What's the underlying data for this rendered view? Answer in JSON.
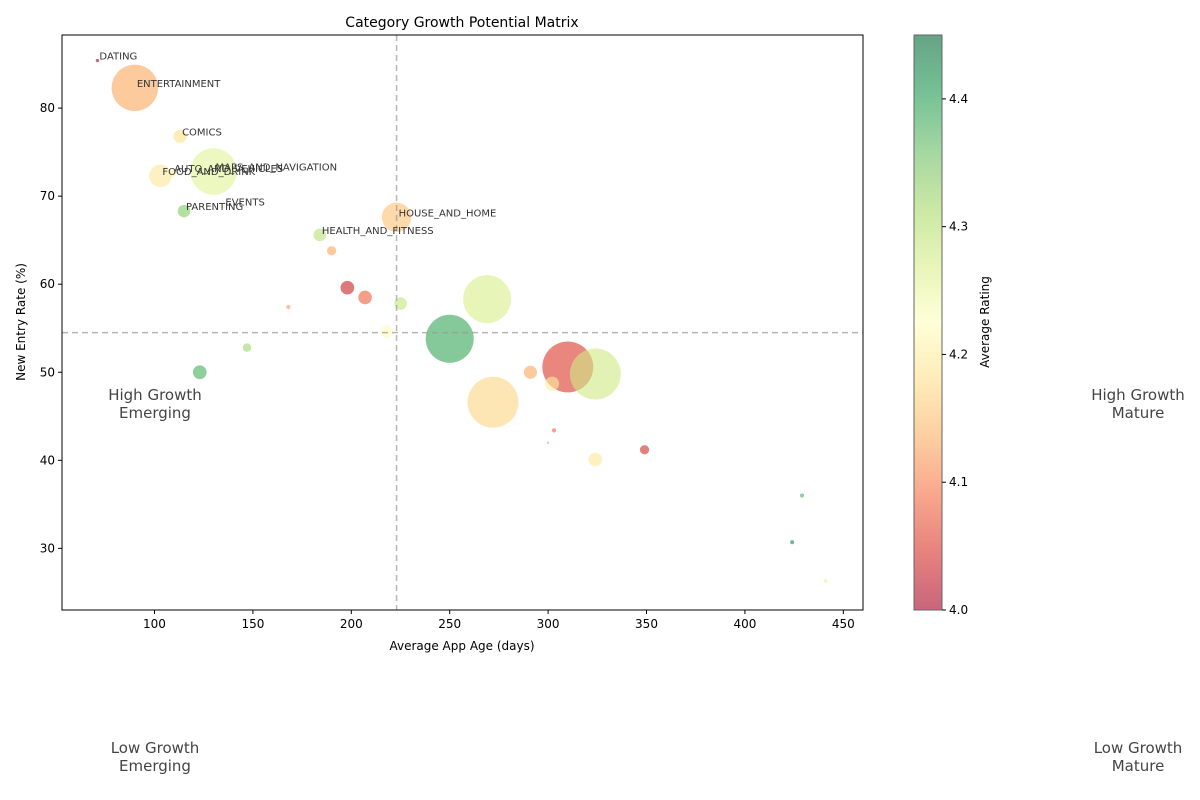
{
  "chart_data": {
    "type": "scatter",
    "title": "Category Growth Potential Matrix",
    "xlabel": "Average App Age (days)",
    "ylabel": "New Entry Rate (%)",
    "xlim": [
      53,
      460
    ],
    "ylim": [
      23,
      88.3
    ],
    "xticks": [
      100,
      150,
      200,
      250,
      300,
      350,
      400,
      450
    ],
    "yticks": [
      30,
      40,
      50,
      60,
      70,
      80
    ],
    "grid": false,
    "median_x": 223,
    "median_y": 54.5,
    "colorbar": {
      "label": "Average Rating",
      "min": 4.0,
      "max": 4.45,
      "ticks": [
        "4.0",
        "4.1",
        "4.2",
        "4.3",
        "4.4"
      ],
      "colormap": "RdYlGn"
    },
    "quadrant_labels": [
      {
        "line1": "High Growth",
        "line2": "Emerging"
      },
      {
        "line1": "High Growth",
        "line2": "Mature"
      },
      {
        "line1": "Low Growth",
        "line2": "Emerging"
      },
      {
        "line1": "Low Growth",
        "line2": "Mature"
      }
    ],
    "points": [
      {
        "label": "DATING",
        "x": 71,
        "y": 85.4,
        "size": 8,
        "rating": 4.0
      },
      {
        "label": "ENTERTAINMENT",
        "x": 90,
        "y": 82.3,
        "size": 1500,
        "rating": 4.13
      },
      {
        "label": "COMICS",
        "x": 113,
        "y": 76.8,
        "size": 120,
        "rating": 4.18
      },
      {
        "label": "AUTO_AND_VEHICLES",
        "x": 109,
        "y": 72.6,
        "size": 40,
        "rating": 4.2
      },
      {
        "label": "MAPS_AND_NAVIGATION",
        "x": 130,
        "y": 72.8,
        "size": 1500,
        "rating": 4.26
      },
      {
        "label": "FOOD_AND_DRINK",
        "x": 103,
        "y": 72.3,
        "size": 350,
        "rating": 4.19
      },
      {
        "label": "EVENTS",
        "x": 135,
        "y": 68.8,
        "size": 6,
        "rating": 4.25
      },
      {
        "label": "PARENTING",
        "x": 115,
        "y": 68.3,
        "size": 110,
        "rating": 4.34
      },
      {
        "label": "HOUSE_AND_HOME",
        "x": 223,
        "y": 67.6,
        "size": 600,
        "rating": 4.15
      },
      {
        "label": "HEALTH_AND_FITNESS",
        "x": 184,
        "y": 65.6,
        "size": 110,
        "rating": 4.3
      },
      {
        "label": "",
        "x": 190,
        "y": 63.8,
        "size": 60,
        "rating": 4.13
      },
      {
        "label": "",
        "x": 198,
        "y": 59.6,
        "size": 130,
        "rating": 4.03
      },
      {
        "label": "",
        "x": 207,
        "y": 58.5,
        "size": 130,
        "rating": 4.08
      },
      {
        "label": "",
        "x": 168,
        "y": 57.4,
        "size": 12,
        "rating": 4.12
      },
      {
        "label": "",
        "x": 269,
        "y": 58.3,
        "size": 1600,
        "rating": 4.27
      },
      {
        "label": "",
        "x": 225,
        "y": 57.8,
        "size": 110,
        "rating": 4.29
      },
      {
        "label": "",
        "x": 218,
        "y": 54.6,
        "size": 110,
        "rating": 4.22
      },
      {
        "label": "",
        "x": 147,
        "y": 52.8,
        "size": 50,
        "rating": 4.32
      },
      {
        "label": "",
        "x": 250,
        "y": 53.8,
        "size": 1600,
        "rating": 4.39
      },
      {
        "label": "",
        "x": 123,
        "y": 50.0,
        "size": 130,
        "rating": 4.38
      },
      {
        "label": "",
        "x": 310,
        "y": 50.6,
        "size": 1800,
        "rating": 4.05
      },
      {
        "label": "",
        "x": 324,
        "y": 49.8,
        "size": 1800,
        "rating": 4.28
      },
      {
        "label": "",
        "x": 291,
        "y": 50.0,
        "size": 120,
        "rating": 4.13
      },
      {
        "label": "",
        "x": 302,
        "y": 48.7,
        "size": 140,
        "rating": 4.2
      },
      {
        "label": "",
        "x": 272,
        "y": 46.6,
        "size": 1800,
        "rating": 4.17
      },
      {
        "label": "",
        "x": 303,
        "y": 43.4,
        "size": 12,
        "rating": 4.08
      },
      {
        "label": "",
        "x": 300,
        "y": 42.0,
        "size": 3,
        "rating": 4.12
      },
      {
        "label": "",
        "x": 324,
        "y": 40.1,
        "size": 130,
        "rating": 4.19
      },
      {
        "label": "",
        "x": 349,
        "y": 41.2,
        "size": 60,
        "rating": 4.04
      },
      {
        "label": "",
        "x": 429,
        "y": 36.0,
        "size": 12,
        "rating": 4.38
      },
      {
        "label": "",
        "x": 424,
        "y": 30.7,
        "size": 12,
        "rating": 4.42
      },
      {
        "label": "",
        "x": 441,
        "y": 26.3,
        "size": 12,
        "rating": 4.2
      }
    ]
  }
}
